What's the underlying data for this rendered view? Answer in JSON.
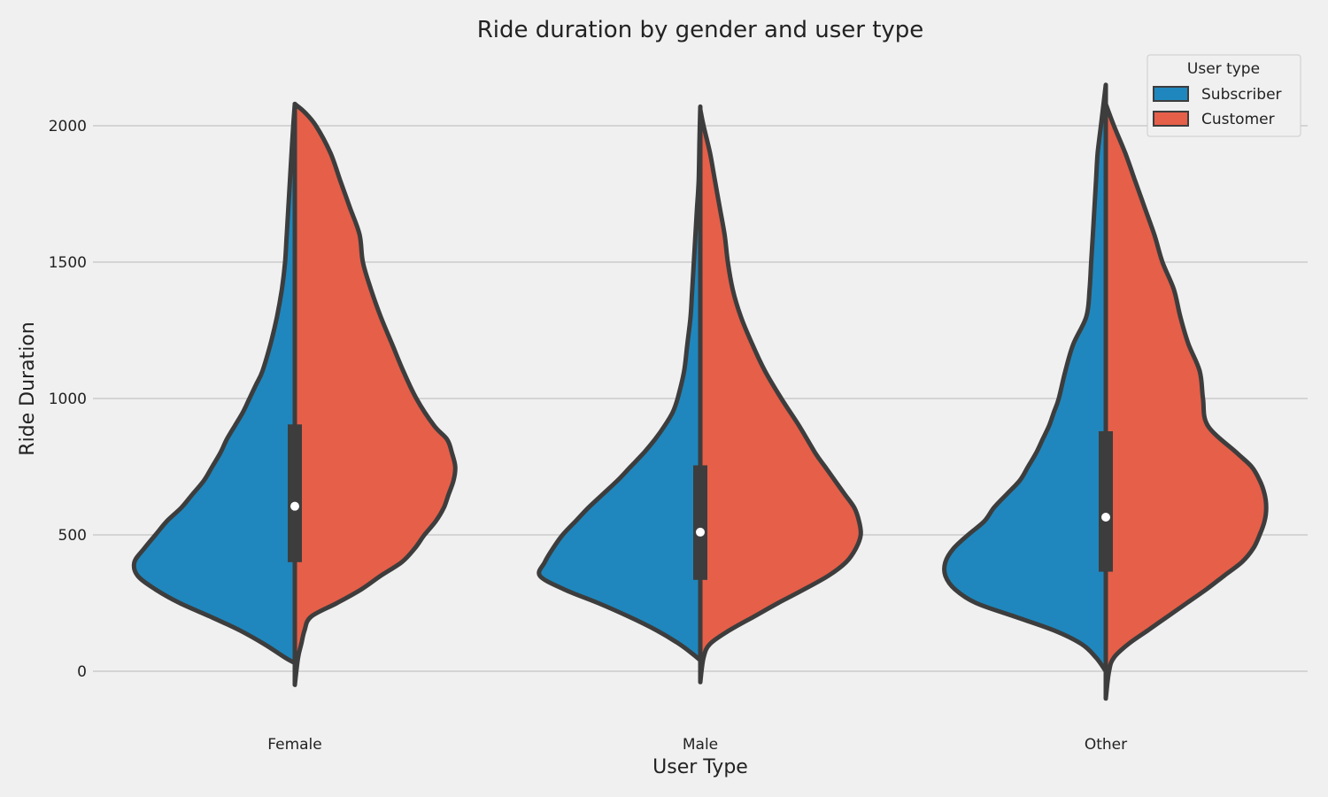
{
  "chart_data": {
    "type": "violin",
    "split": true,
    "title": "Ride duration by gender and user type",
    "xlabel": "User Type",
    "ylabel": "Ride Duration",
    "categories": [
      "Female",
      "Male",
      "Other"
    ],
    "y_ticks": [
      0,
      500,
      1000,
      1500,
      2000
    ],
    "ylim": [
      -170,
      2250
    ],
    "grid": "horizontal",
    "legend": {
      "title": "User type",
      "placement": "top-right",
      "entries": [
        {
          "label": "Subscriber",
          "color": "#1f87bd"
        },
        {
          "label": "Customer",
          "color": "#e55f49"
        }
      ]
    },
    "series": [
      {
        "name": "Subscriber",
        "side": "left",
        "color": "#1f87bd",
        "densities": [
          {
            "category": "Female",
            "profile": [
              [
                30,
                0.0
              ],
              [
                50,
                0.06
              ],
              [
                100,
                0.19
              ],
              [
                150,
                0.34
              ],
              [
                200,
                0.52
              ],
              [
                250,
                0.71
              ],
              [
                300,
                0.86
              ],
              [
                350,
                0.97
              ],
              [
                400,
                0.99
              ],
              [
                450,
                0.93
              ],
              [
                500,
                0.86
              ],
              [
                550,
                0.79
              ],
              [
                600,
                0.7
              ],
              [
                650,
                0.63
              ],
              [
                700,
                0.56
              ],
              [
                750,
                0.51
              ],
              [
                800,
                0.46
              ],
              [
                850,
                0.42
              ],
              [
                900,
                0.37
              ],
              [
                950,
                0.32
              ],
              [
                1000,
                0.28
              ],
              [
                1050,
                0.24
              ],
              [
                1100,
                0.2
              ],
              [
                1200,
                0.15
              ],
              [
                1300,
                0.11
              ],
              [
                1400,
                0.08
              ],
              [
                1500,
                0.06
              ],
              [
                1600,
                0.05
              ],
              [
                1700,
                0.04
              ],
              [
                1800,
                0.03
              ],
              [
                1900,
                0.02
              ],
              [
                2000,
                0.01
              ],
              [
                2080,
                0.0
              ]
            ]
          },
          {
            "category": "Male",
            "profile": [
              [
                40,
                0.0
              ],
              [
                60,
                0.04
              ],
              [
                100,
                0.13
              ],
              [
                150,
                0.27
              ],
              [
                200,
                0.44
              ],
              [
                250,
                0.63
              ],
              [
                300,
                0.84
              ],
              [
                350,
                0.99
              ],
              [
                400,
                0.96
              ],
              [
                450,
                0.91
              ],
              [
                500,
                0.85
              ],
              [
                550,
                0.77
              ],
              [
                600,
                0.69
              ],
              [
                650,
                0.6
              ],
              [
                700,
                0.51
              ],
              [
                750,
                0.43
              ],
              [
                800,
                0.35
              ],
              [
                850,
                0.28
              ],
              [
                900,
                0.22
              ],
              [
                950,
                0.17
              ],
              [
                1000,
                0.14
              ],
              [
                1100,
                0.1
              ],
              [
                1200,
                0.08
              ],
              [
                1300,
                0.06
              ],
              [
                1400,
                0.05
              ],
              [
                1500,
                0.04
              ],
              [
                1600,
                0.03
              ],
              [
                1700,
                0.02
              ],
              [
                1800,
                0.01
              ],
              [
                1950,
                0.005
              ],
              [
                2070,
                0.0
              ]
            ]
          },
          {
            "category": "Other",
            "profile": [
              [
                0,
                0.0
              ],
              [
                50,
                0.06
              ],
              [
                100,
                0.15
              ],
              [
                150,
                0.32
              ],
              [
                200,
                0.56
              ],
              [
                250,
                0.8
              ],
              [
                300,
                0.93
              ],
              [
                350,
                0.99
              ],
              [
                400,
                0.99
              ],
              [
                450,
                0.94
              ],
              [
                500,
                0.85
              ],
              [
                550,
                0.75
              ],
              [
                600,
                0.69
              ],
              [
                650,
                0.61
              ],
              [
                700,
                0.53
              ],
              [
                750,
                0.48
              ],
              [
                800,
                0.43
              ],
              [
                850,
                0.39
              ],
              [
                900,
                0.35
              ],
              [
                950,
                0.32
              ],
              [
                1000,
                0.29
              ],
              [
                1100,
                0.25
              ],
              [
                1200,
                0.2
              ],
              [
                1300,
                0.12
              ],
              [
                1400,
                0.1
              ],
              [
                1500,
                0.09
              ],
              [
                1600,
                0.08
              ],
              [
                1700,
                0.07
              ],
              [
                1800,
                0.06
              ],
              [
                1900,
                0.05
              ],
              [
                2000,
                0.03
              ],
              [
                2100,
                0.01
              ],
              [
                2150,
                0.0
              ]
            ]
          }
        ]
      },
      {
        "name": "Customer",
        "side": "right",
        "color": "#e55f49",
        "densities": [
          {
            "category": "Female",
            "profile": [
              [
                -50,
                0.0
              ],
              [
                50,
                0.02
              ],
              [
                100,
                0.04
              ],
              [
                150,
                0.06
              ],
              [
                200,
                0.1
              ],
              [
                250,
                0.26
              ],
              [
                300,
                0.41
              ],
              [
                350,
                0.53
              ],
              [
                400,
                0.66
              ],
              [
                450,
                0.74
              ],
              [
                500,
                0.8
              ],
              [
                550,
                0.87
              ],
              [
                600,
                0.92
              ],
              [
                650,
                0.95
              ],
              [
                700,
                0.98
              ],
              [
                750,
                0.99
              ],
              [
                800,
                0.97
              ],
              [
                850,
                0.94
              ],
              [
                900,
                0.86
              ],
              [
                1000,
                0.75
              ],
              [
                1100,
                0.67
              ],
              [
                1200,
                0.6
              ],
              [
                1300,
                0.53
              ],
              [
                1400,
                0.47
              ],
              [
                1500,
                0.42
              ],
              [
                1600,
                0.4
              ],
              [
                1700,
                0.34
              ],
              [
                1800,
                0.28
              ],
              [
                1900,
                0.22
              ],
              [
                2000,
                0.13
              ],
              [
                2050,
                0.06
              ],
              [
                2080,
                0.0
              ]
            ]
          },
          {
            "category": "Male",
            "profile": [
              [
                -40,
                0.0
              ],
              [
                50,
                0.02
              ],
              [
                100,
                0.06
              ],
              [
                150,
                0.18
              ],
              [
                200,
                0.33
              ],
              [
                250,
                0.48
              ],
              [
                300,
                0.64
              ],
              [
                350,
                0.79
              ],
              [
                400,
                0.9
              ],
              [
                450,
                0.96
              ],
              [
                500,
                0.99
              ],
              [
                550,
                0.98
              ],
              [
                600,
                0.95
              ],
              [
                650,
                0.89
              ],
              [
                700,
                0.83
              ],
              [
                750,
                0.77
              ],
              [
                800,
                0.71
              ],
              [
                900,
                0.61
              ],
              [
                1000,
                0.5
              ],
              [
                1100,
                0.4
              ],
              [
                1200,
                0.32
              ],
              [
                1300,
                0.25
              ],
              [
                1400,
                0.2
              ],
              [
                1500,
                0.17
              ],
              [
                1600,
                0.15
              ],
              [
                1700,
                0.12
              ],
              [
                1800,
                0.09
              ],
              [
                1900,
                0.06
              ],
              [
                2000,
                0.02
              ],
              [
                2060,
                0.0
              ]
            ]
          },
          {
            "category": "Other",
            "profile": [
              [
                -100,
                0.0
              ],
              [
                0,
                0.02
              ],
              [
                50,
                0.05
              ],
              [
                100,
                0.14
              ],
              [
                150,
                0.26
              ],
              [
                200,
                0.38
              ],
              [
                250,
                0.5
              ],
              [
                300,
                0.62
              ],
              [
                350,
                0.73
              ],
              [
                400,
                0.84
              ],
              [
                450,
                0.91
              ],
              [
                500,
                0.95
              ],
              [
                550,
                0.98
              ],
              [
                600,
                0.99
              ],
              [
                650,
                0.98
              ],
              [
                700,
                0.95
              ],
              [
                750,
                0.9
              ],
              [
                800,
                0.81
              ],
              [
                900,
                0.63
              ],
              [
                1000,
                0.6
              ],
              [
                1100,
                0.58
              ],
              [
                1200,
                0.51
              ],
              [
                1300,
                0.46
              ],
              [
                1400,
                0.42
              ],
              [
                1500,
                0.35
              ],
              [
                1600,
                0.3
              ],
              [
                1700,
                0.24
              ],
              [
                1800,
                0.18
              ],
              [
                1900,
                0.12
              ],
              [
                2000,
                0.05
              ],
              [
                2080,
                0.0
              ]
            ]
          }
        ]
      }
    ],
    "box_stats": [
      {
        "category": "Female",
        "q1": 400,
        "median": 605,
        "q3": 905,
        "whisker_low": 30,
        "whisker_high": 2070
      },
      {
        "category": "Male",
        "q1": 335,
        "median": 510,
        "q3": 755,
        "whisker_low": 40,
        "whisker_high": 2040
      },
      {
        "category": "Other",
        "q1": 365,
        "median": 565,
        "q3": 880,
        "whisker_low": 0,
        "whisker_high": 2120
      }
    ]
  }
}
